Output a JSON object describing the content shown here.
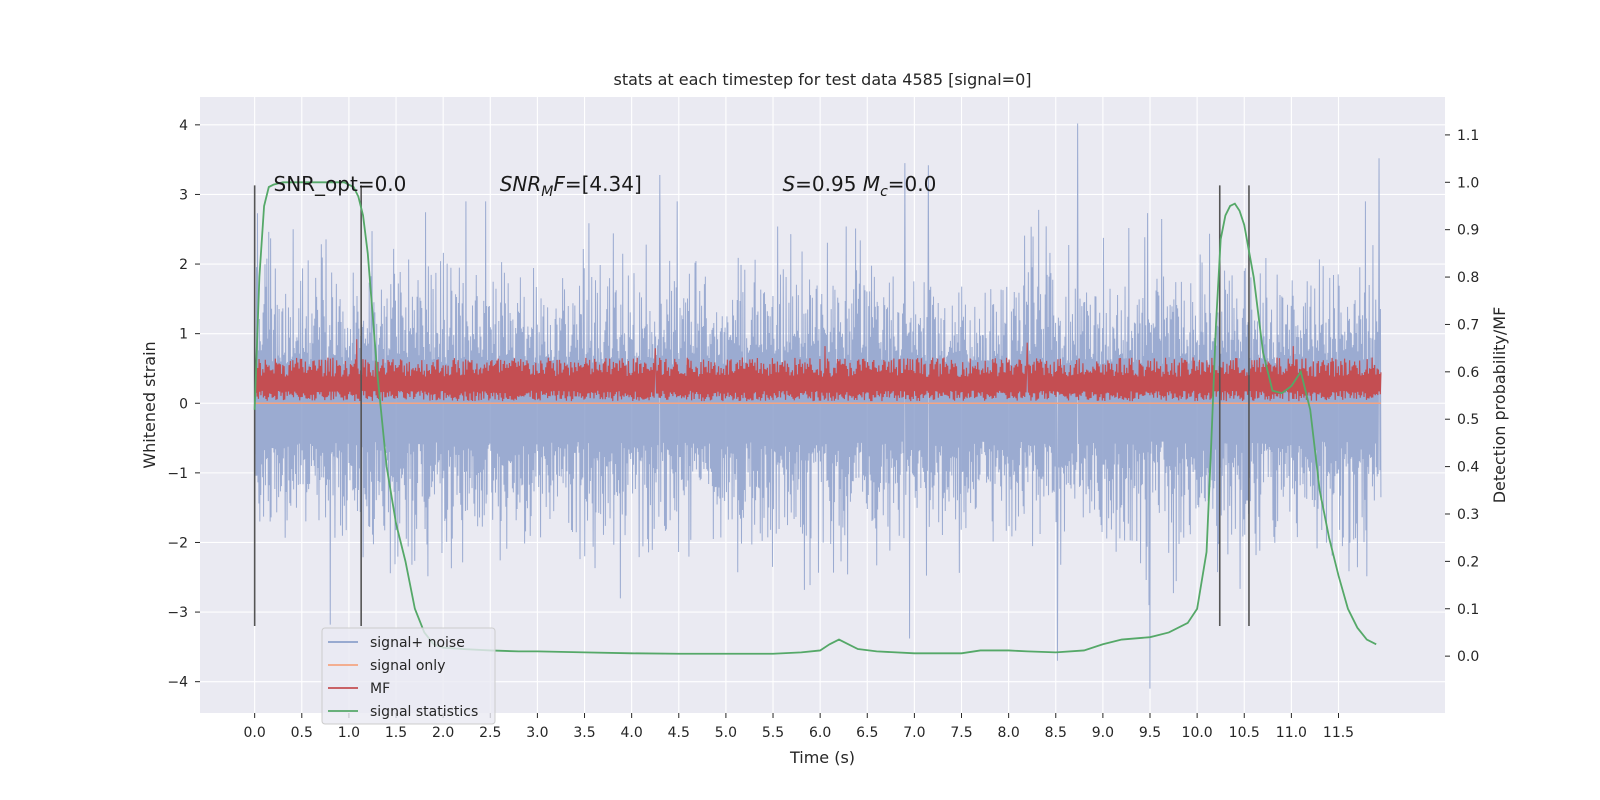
{
  "chart_data": {
    "type": "line",
    "title": "stats at each timestep for test data 4585 [signal=0]",
    "xlabel": "Time (s)",
    "ylabel": "Whitened strain",
    "y2label": "Detection probability/MF",
    "xlim": [
      -0.58,
      12.63
    ],
    "ylim": [
      -4.45,
      4.4
    ],
    "y2lim": [
      -0.12,
      1.18
    ],
    "x_ticks": [
      0.0,
      0.5,
      1.0,
      1.5,
      2.0,
      2.5,
      3.0,
      3.5,
      4.0,
      4.5,
      5.0,
      5.5,
      6.0,
      6.5,
      7.0,
      7.5,
      8.0,
      8.5,
      9.0,
      9.5,
      10.0,
      10.5,
      11.0,
      11.5
    ],
    "x_tick_labels": [
      "0.0",
      "0.5",
      "1.0",
      "1.5",
      "2.0",
      "2.5",
      "3.0",
      "3.5",
      "4.0",
      "4.5",
      "5.0",
      "5.5",
      "6.0",
      "6.5",
      "7.0",
      "7.5",
      "8.0",
      "8.5",
      "9.0",
      "9.5",
      "10.0",
      "10.5",
      "11.0",
      "11.5"
    ],
    "y_ticks": [
      -4,
      -3,
      -2,
      -1,
      0,
      1,
      2,
      3,
      4
    ],
    "y_tick_labels": [
      "−4",
      "−3",
      "−2",
      "−1",
      "0",
      "1",
      "2",
      "3",
      "4"
    ],
    "y2_ticks": [
      0.0,
      0.1,
      0.2,
      0.3,
      0.4,
      0.5,
      0.6,
      0.7,
      0.8,
      0.9,
      1.0,
      1.1
    ],
    "y2_tick_labels": [
      "0.0",
      "0.1",
      "0.2",
      "0.3",
      "0.4",
      "0.5",
      "0.6",
      "0.7",
      "0.8",
      "0.9",
      "1.0",
      "1.1"
    ],
    "grid": true,
    "legend_placement": "lower-left",
    "legend": [
      {
        "label": "signal+ noise",
        "color": "#8da0cb"
      },
      {
        "label": "signal only",
        "color": "#f4a582"
      },
      {
        "label": "MF",
        "color": "#c44e52"
      },
      {
        "label": "signal statistics",
        "color": "#55a868"
      }
    ],
    "series": [
      {
        "name": "signal+ noise",
        "axis": "left",
        "color": "#8da0cb",
        "x_range": [
          0.0,
          11.95
        ],
        "typical_range": [
          -1.6,
          1.6
        ],
        "note_values": "dense whitened noise trace",
        "peaks": [
          [
            8.73,
            4.02
          ],
          [
            11.93,
            3.52
          ],
          [
            6.9,
            3.45
          ],
          [
            7.15,
            3.42
          ],
          [
            4.3,
            3.28
          ],
          [
            9.5,
            -4.1
          ],
          [
            8.52,
            -3.7
          ],
          [
            6.95,
            -3.38
          ],
          [
            0.8,
            -3.18
          ]
        ]
      },
      {
        "name": "signal only",
        "axis": "left",
        "color": "#f4a582",
        "x": [
          0.0,
          11.95
        ],
        "y": [
          0.0,
          0.0
        ]
      },
      {
        "name": "MF",
        "axis": "left",
        "color": "#c44e52",
        "x_range": [
          0.0,
          11.95
        ],
        "typical_range": [
          0.0,
          0.6
        ],
        "peaks": [
          [
            1.08,
            0.92
          ],
          [
            8.2,
            0.87
          ],
          [
            11.02,
            0.82
          ],
          [
            6.05,
            0.82
          ],
          [
            4.25,
            0.79
          ]
        ]
      },
      {
        "name": "signal statistics",
        "axis": "right",
        "color": "#55a868",
        "x": [
          0.0,
          0.05,
          0.1,
          0.15,
          0.2,
          0.3,
          0.5,
          0.8,
          0.95,
          1.05,
          1.1,
          1.15,
          1.2,
          1.3,
          1.4,
          1.5,
          1.6,
          1.7,
          1.8,
          1.9,
          2.0,
          2.2,
          2.5,
          2.8,
          3.0,
          3.5,
          4.0,
          4.5,
          5.0,
          5.5,
          5.8,
          6.0,
          6.1,
          6.2,
          6.3,
          6.4,
          6.6,
          7.0,
          7.5,
          7.7,
          8.0,
          8.2,
          8.5,
          8.8,
          9.0,
          9.2,
          9.5,
          9.7,
          9.9,
          10.0,
          10.1,
          10.15,
          10.2,
          10.25,
          10.3,
          10.35,
          10.4,
          10.45,
          10.5,
          10.6,
          10.7,
          10.8,
          10.9,
          11.0,
          11.1,
          11.2,
          11.3,
          11.4,
          11.5,
          11.6,
          11.7,
          11.8,
          11.9
        ],
        "y": [
          0.52,
          0.8,
          0.95,
          0.99,
          0.995,
          1.0,
          1.0,
          1.0,
          1.0,
          0.99,
          0.97,
          0.93,
          0.85,
          0.6,
          0.4,
          0.28,
          0.2,
          0.1,
          0.05,
          0.025,
          0.018,
          0.015,
          0.012,
          0.01,
          0.01,
          0.008,
          0.006,
          0.005,
          0.005,
          0.005,
          0.008,
          0.012,
          0.025,
          0.035,
          0.025,
          0.015,
          0.01,
          0.006,
          0.006,
          0.012,
          0.012,
          0.01,
          0.008,
          0.012,
          0.025,
          0.035,
          0.04,
          0.05,
          0.07,
          0.1,
          0.22,
          0.45,
          0.7,
          0.88,
          0.93,
          0.95,
          0.955,
          0.94,
          0.91,
          0.8,
          0.64,
          0.56,
          0.555,
          0.57,
          0.6,
          0.52,
          0.35,
          0.25,
          0.17,
          0.1,
          0.06,
          0.035,
          0.025
        ]
      }
    ],
    "vertical_lines": [
      0.0,
      1.13,
      10.24,
      10.55
    ],
    "vertical_lines_y_span": [
      -3.2,
      3.13
    ],
    "annotations": [
      {
        "text": "SNR_opt=0.0",
        "x": 0.2,
        "y": 3.15
      },
      {
        "text": "SNR_MF=[4.34]",
        "x": 2.6,
        "y": 3.15
      },
      {
        "text": "S=0.95   M_c=0.0",
        "x": 5.6,
        "y": 3.15
      }
    ]
  }
}
